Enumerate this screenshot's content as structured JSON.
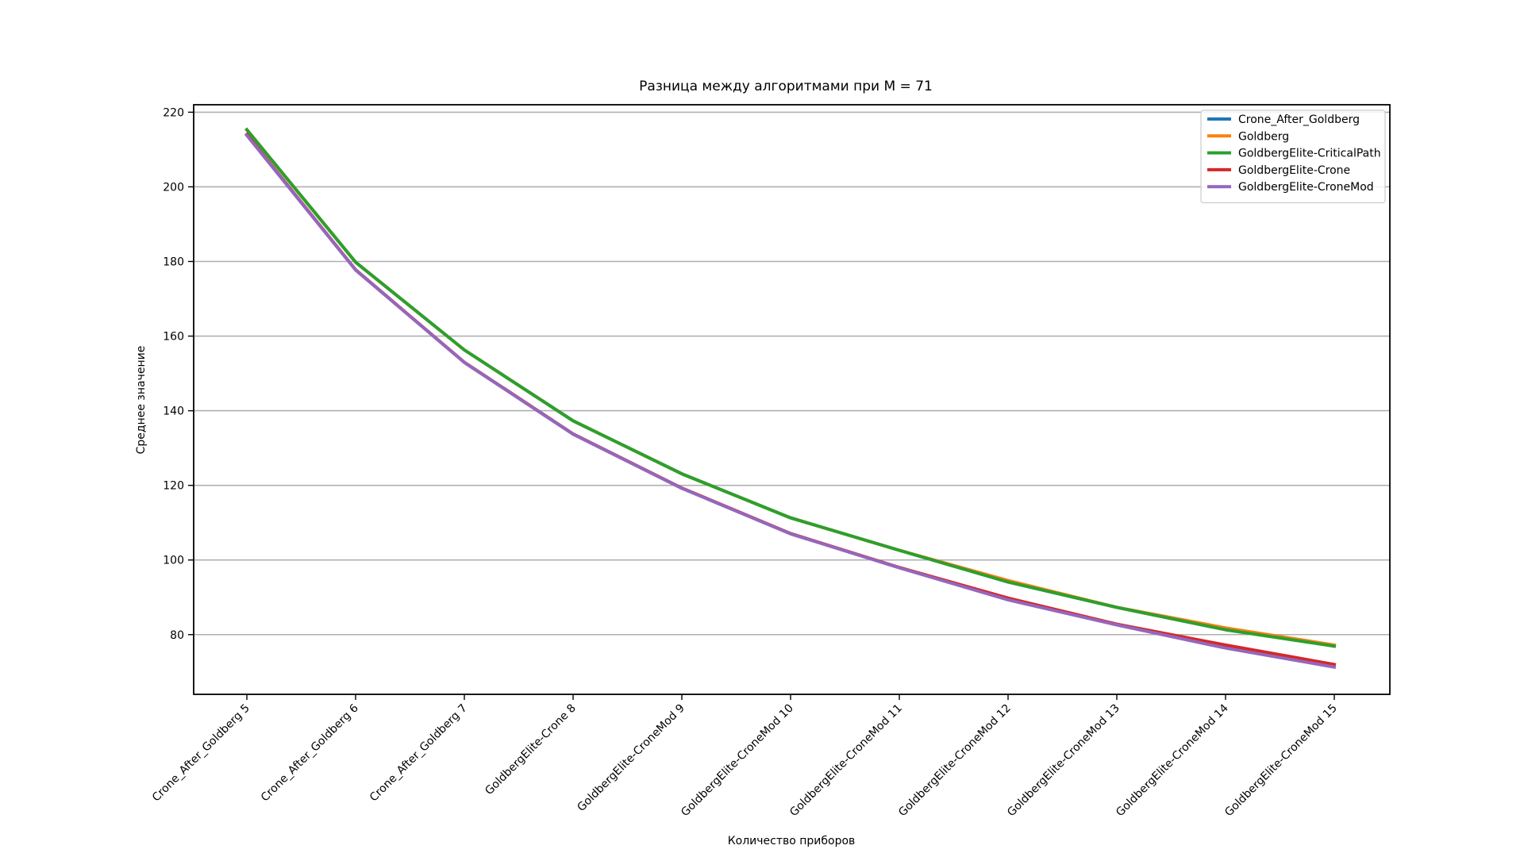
{
  "chart_data": {
    "type": "line",
    "title": "Разница между алгоритмами при M = 71",
    "xlabel": "Количество приборов",
    "ylabel": "Среднее значение",
    "categories": [
      "Crone_After_Goldberg 5",
      "Crone_After_Goldberg 6",
      "Crone_After_Goldberg 7",
      "GoldbergElite-Crone 8",
      "GoldbergElite-CroneMod 9",
      "GoldbergElite-CroneMod 10",
      "GoldbergElite-CroneMod 11",
      "GoldbergElite-CroneMod 12",
      "GoldbergElite-CroneMod 13",
      "GoldbergElite-CroneMod 14",
      "GoldbergElite-CroneMod 15"
    ],
    "ylim": [
      64,
      222
    ],
    "yticks": [
      80,
      100,
      120,
      140,
      160,
      180,
      200,
      220
    ],
    "grid": "y",
    "legend_position": "top-right",
    "series": [
      {
        "name": "Crone_After_Goldberg",
        "color": "#1f77b4",
        "values": [
          215.3,
          179.8,
          156.3,
          137.3,
          123.1,
          111.3,
          102.6,
          94.1,
          87.3,
          81.3,
          77.1
        ]
      },
      {
        "name": "Goldberg",
        "color": "#ff7f0e",
        "values": [
          215.3,
          179.8,
          156.3,
          137.3,
          123.1,
          111.3,
          102.6,
          94.5,
          87.3,
          81.8,
          77.2
        ]
      },
      {
        "name": "GoldbergElite-CriticalPath",
        "color": "#2ca02c",
        "values": [
          215.3,
          179.8,
          156.3,
          137.3,
          123.1,
          111.3,
          102.6,
          94.1,
          87.3,
          81.3,
          76.9
        ]
      },
      {
        "name": "GoldbergElite-Crone",
        "color": "#d62728",
        "values": [
          214.0,
          177.8,
          153.0,
          133.8,
          119.3,
          107.1,
          98.0,
          89.8,
          82.8,
          77.2,
          72.0
        ]
      },
      {
        "name": "GoldbergElite-CroneMod",
        "color": "#9467bd",
        "values": [
          213.8,
          177.7,
          152.9,
          133.7,
          119.2,
          107.0,
          97.9,
          89.3,
          82.6,
          76.4,
          71.3
        ]
      }
    ]
  }
}
